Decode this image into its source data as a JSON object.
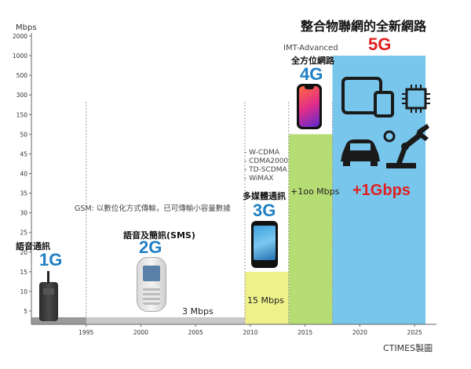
{
  "chart_data": {
    "type": "bar",
    "title": "整合物聯網的全新網路",
    "ylabel": "Mbps",
    "y_ticks": [
      "2000",
      "1000",
      "500",
      "300",
      "150",
      "50",
      "45",
      "40",
      "35",
      "30",
      "25",
      "20",
      "15",
      "10",
      "5"
    ],
    "x_ticks": [
      1995,
      2000,
      2005,
      2010,
      2015,
      2020,
      2025
    ],
    "xlim": [
      1990,
      2027
    ],
    "grid": false,
    "credit": "CTIMES製圖",
    "generations": [
      {
        "gen": "1G",
        "name": "語音通訊",
        "start": 1990.0,
        "end": 1995.0,
        "level_tick": "5",
        "color": "#9a9a9a",
        "speed_label": "",
        "notes": []
      },
      {
        "gen": "2G",
        "name": "語音及簡訊(SMS)",
        "start": 1995.0,
        "end": 2009.5,
        "level_tick": "5",
        "color": "#c8c8c8",
        "speed_label": "3 Mbps",
        "notes": [
          "GSM: 以數位化方式傳輸，已可傳輸小容量數據"
        ]
      },
      {
        "gen": "3G",
        "name": "多媒體通訊",
        "start": 2009.5,
        "end": 2013.5,
        "level_tick": "15",
        "color": "#eef08a",
        "speed_label": "15 Mbps",
        "notes": [
          "- W-CDMA",
          "- CDMA2000",
          "- TD-SCDMA",
          "- WiMAX"
        ]
      },
      {
        "gen": "4G",
        "name": "全方位網路",
        "start": 2013.5,
        "end": 2017.5,
        "level_tick": "50",
        "color": "#b6dc74",
        "speed_label": "+1oo Mbps",
        "notes": [
          "IMT-Advanced"
        ]
      },
      {
        "gen": "5G",
        "name": "",
        "start": 2017.5,
        "end": 2026.0,
        "level_tick": "1000",
        "color": "#78c6ec",
        "speed_label": "+1Gbps",
        "notes": []
      }
    ]
  },
  "colors": {
    "gen_blue": "#1f7fc4",
    "gen_red": "#e02020",
    "axis": "#666666",
    "divider": "#999999",
    "icon_dark": "#1a1a1a"
  },
  "icons": [
    "tablet-phone-icon",
    "chip-icon",
    "car-icon",
    "robot-arm-icon"
  ]
}
